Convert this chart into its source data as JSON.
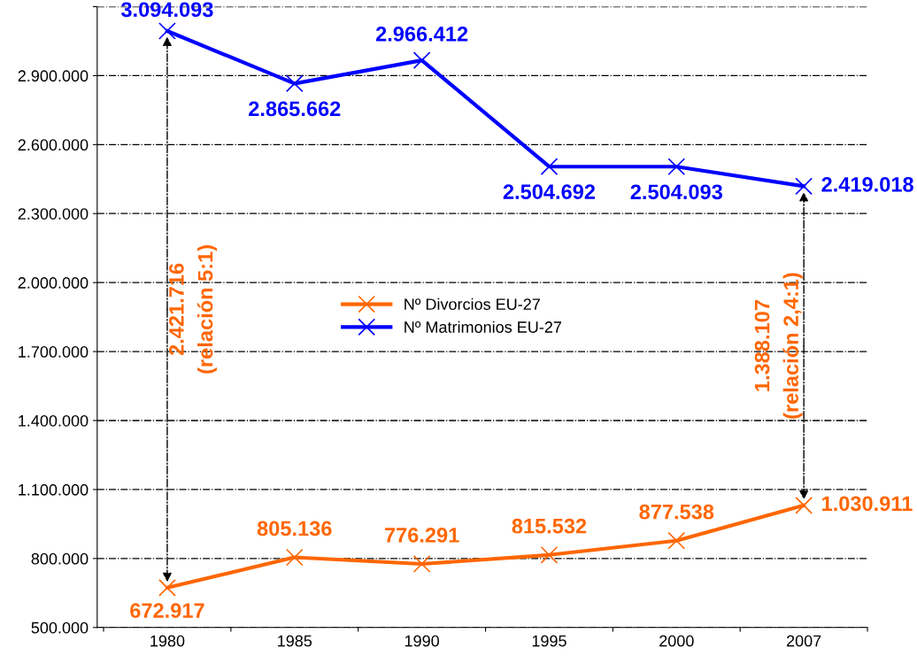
{
  "chart_data": {
    "type": "line",
    "categories": [
      "1980",
      "1985",
      "1990",
      "1995",
      "2000",
      "2007"
    ],
    "series": [
      {
        "name": "Nº Divorcios EU-27",
        "color": "#ff6600",
        "marker": "cross",
        "values": [
          672917,
          805136,
          776291,
          815532,
          877538,
          1030911
        ],
        "value_labels": [
          "672.917",
          "805.136",
          "776.291",
          "815.532",
          "877.538",
          "1.030.911"
        ]
      },
      {
        "name": "Nº Matrimonios EU-27",
        "color": "#0000ff",
        "marker": "cross",
        "values": [
          3094093,
          2865662,
          2966412,
          2504692,
          2504093,
          2419018
        ],
        "value_labels": [
          "3.094.093",
          "2.865.662",
          "2.966.412",
          "2.504.692",
          "2.504.093",
          "2.419.018"
        ]
      }
    ],
    "ylim": [
      500000,
      3200000
    ],
    "yticks": [
      {
        "value": 500000,
        "label": "500.000"
      },
      {
        "value": 800000,
        "label": "800.000"
      },
      {
        "value": 1100000,
        "label": "1.100.000"
      },
      {
        "value": 1400000,
        "label": "1.400.000"
      },
      {
        "value": 1700000,
        "label": "1.700.000"
      },
      {
        "value": 2000000,
        "label": "2.000.000"
      },
      {
        "value": 2300000,
        "label": "2.300.000"
      },
      {
        "value": 2600000,
        "label": "2.600.000"
      },
      {
        "value": 2900000,
        "label": "2.900.000"
      },
      {
        "value": 3200000,
        "label": null
      }
    ],
    "grid": "y",
    "legend": "center left",
    "line_style": "solid",
    "annotations": [
      {
        "text": "2.421.716\n(relación 5:1)",
        "x": "1980",
        "y": 672917
      },
      {
        "text": "1.388.107\n(relación 2,4:1)",
        "x": "2007",
        "y": 1030911
      }
    ]
  }
}
